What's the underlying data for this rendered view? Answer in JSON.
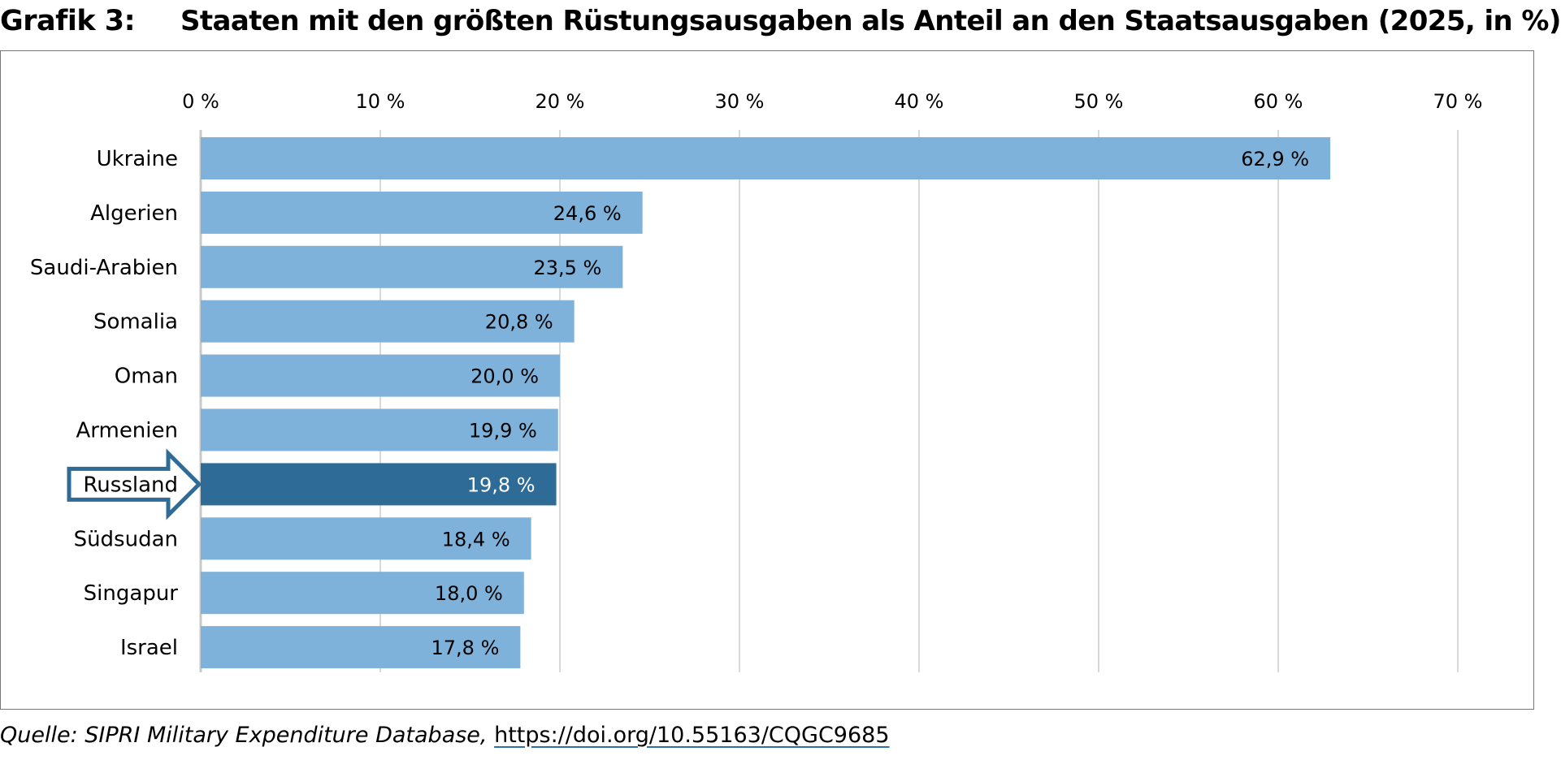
{
  "figure": {
    "label": "Grafik 3:",
    "title": "Staaten mit den größten Rüstungsausgaben als Anteil an den Staatsausgaben (2025, in %)"
  },
  "source": {
    "text": "Quelle: SIPRI Military Expenditure Database,",
    "link": "https://doi.org/10.55163/CQGC9685"
  },
  "colors": {
    "bar": "#7fb2da",
    "highlight_bar": "#2e6b96",
    "arrow_stroke": "#2e6b96",
    "grid": "#d9d9d9"
  },
  "chart_data": {
    "type": "bar",
    "orientation": "horizontal",
    "categories": [
      "Ukraine",
      "Algerien",
      "Saudi-Arabien",
      "Somalia",
      "Oman",
      "Armenien",
      "Russland",
      "Südsudan",
      "Singapur",
      "Israel"
    ],
    "values": [
      62.9,
      24.6,
      23.5,
      20.8,
      20.0,
      19.9,
      19.8,
      18.4,
      18.0,
      17.8
    ],
    "value_labels": [
      "62,9 %",
      "24,6 %",
      "23,5 %",
      "20,8 %",
      "20,0 %",
      "19,9 %",
      "19,8 %",
      "18,4 %",
      "18,0 %",
      "17,8 %"
    ],
    "highlighted_category": "Russland",
    "xlim": [
      0,
      70
    ],
    "ticks": [
      0,
      10,
      20,
      30,
      40,
      50,
      60,
      70
    ],
    "tick_labels": [
      "0 %",
      "10 %",
      "20 %",
      "30 %",
      "40 %",
      "50 %",
      "60 %",
      "70 %"
    ],
    "axis_position": "top",
    "grid": true,
    "legend": "none"
  }
}
